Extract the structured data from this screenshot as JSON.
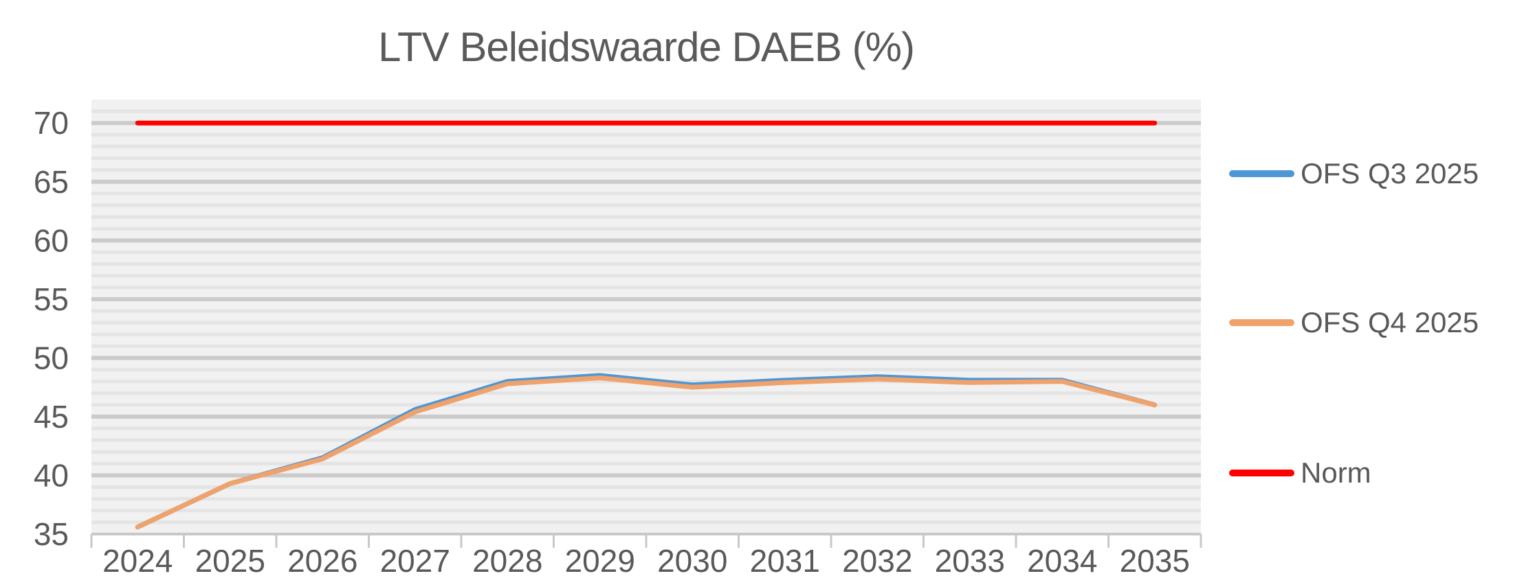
{
  "title": "LTV Beleidswaarde DAEB (%)",
  "colors": {
    "title_text": "#5a5a5a",
    "axis_text": "#595959",
    "plot_bg": "#f1f1f1",
    "gridline_major": "#cbcbcb",
    "gridline_minor": "#e4e4e4",
    "axis_line": "#c8c8c8",
    "series_blue": "#4e96d4",
    "series_orange": "#f0a26c",
    "series_red": "#ff0000"
  },
  "chart_data": {
    "type": "line",
    "title": "LTV Beleidswaarde DAEB (%)",
    "categories": [
      "2024",
      "2025",
      "2026",
      "2027",
      "2028",
      "2029",
      "2030",
      "2031",
      "2032",
      "2033",
      "2034",
      "2035"
    ],
    "series": [
      {
        "name": "OFS Q3 2025",
        "color": "#4e96d4",
        "values": [
          35.6,
          39.3,
          41.5,
          45.6,
          48.0,
          48.5,
          47.7,
          48.1,
          48.4,
          48.1,
          48.1,
          46.0
        ]
      },
      {
        "name": "OFS Q4 2025",
        "color": "#f0a26c",
        "values": [
          35.6,
          39.3,
          41.4,
          45.4,
          47.8,
          48.3,
          47.5,
          47.9,
          48.2,
          47.9,
          48.0,
          46.0
        ]
      },
      {
        "name": "Norm",
        "color": "#ff0000",
        "values": [
          70,
          70,
          70,
          70,
          70,
          70,
          70,
          70,
          70,
          70,
          70,
          70
        ]
      }
    ],
    "xlabel": "",
    "ylabel": "",
    "ylim": [
      35,
      72
    ],
    "y_major_ticks": [
      35,
      40,
      45,
      50,
      55,
      60,
      65,
      70
    ],
    "y_minor_step": 1,
    "grid": true,
    "legend_position": "right"
  }
}
